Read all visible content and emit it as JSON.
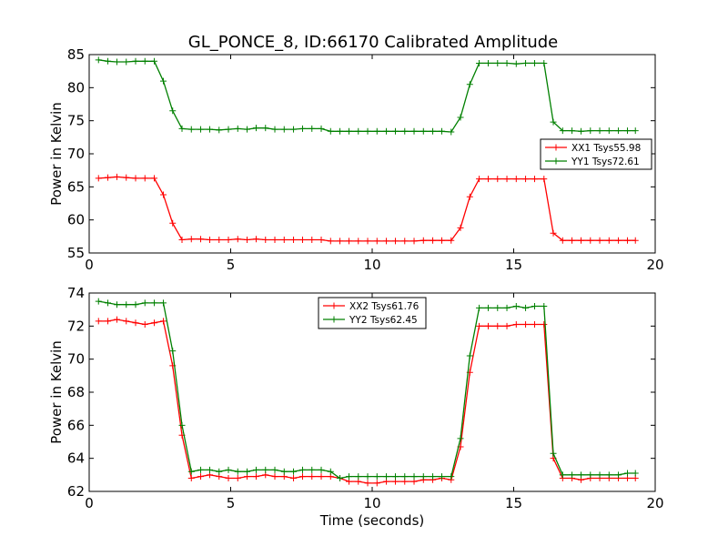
{
  "figure": {
    "title": "GL_PONCE_8, ID:66170 Calibrated Amplitude"
  },
  "chart_data": [
    {
      "type": "line",
      "title": "GL_PONCE_8, ID:66170 Calibrated Amplitude",
      "xlabel": "",
      "ylabel": "Power in Kelvin",
      "xlim": [
        0,
        20
      ],
      "ylim": [
        55,
        85
      ],
      "xticks": [
        0,
        5,
        10,
        15,
        20
      ],
      "yticks": [
        55,
        60,
        65,
        70,
        75,
        80,
        85
      ],
      "legend_position": "right",
      "grid": false,
      "x": [
        0.33,
        0.66,
        0.98,
        1.31,
        1.64,
        1.97,
        2.3,
        2.62,
        2.95,
        3.28,
        3.61,
        3.94,
        4.26,
        4.59,
        4.92,
        5.25,
        5.58,
        5.9,
        6.23,
        6.56,
        6.89,
        7.22,
        7.54,
        7.87,
        8.2,
        8.53,
        8.86,
        9.18,
        9.51,
        9.84,
        10.17,
        10.5,
        10.82,
        11.15,
        11.48,
        11.81,
        12.14,
        12.46,
        12.79,
        13.12,
        13.45,
        13.78,
        14.1,
        14.43,
        14.76,
        15.09,
        15.42,
        15.74,
        16.07,
        16.4,
        16.73,
        17.06,
        17.38,
        17.71,
        18.04,
        18.37,
        18.7,
        19.02,
        19.3
      ],
      "series": [
        {
          "name": "XX1 Tsys55.98",
          "color": "#ff0000",
          "values": [
            66.3,
            66.4,
            66.5,
            66.4,
            66.3,
            66.3,
            66.3,
            63.8,
            59.5,
            57.0,
            57.1,
            57.1,
            57.0,
            57.0,
            57.0,
            57.1,
            57.0,
            57.1,
            57.0,
            57.0,
            57.0,
            57.0,
            57.0,
            57.0,
            57.0,
            56.8,
            56.8,
            56.8,
            56.8,
            56.8,
            56.8,
            56.8,
            56.8,
            56.8,
            56.8,
            56.9,
            56.9,
            56.9,
            56.9,
            58.8,
            63.5,
            66.2,
            66.2,
            66.2,
            66.2,
            66.2,
            66.2,
            66.2,
            66.2,
            58.0,
            56.9,
            56.9,
            56.9,
            56.9,
            56.9,
            56.9,
            56.9,
            56.9,
            56.9
          ]
        },
        {
          "name": "YY1 Tsys72.61",
          "color": "#008000",
          "values": [
            84.2,
            84.0,
            83.9,
            83.9,
            84.0,
            84.0,
            84.0,
            81.0,
            76.5,
            73.8,
            73.7,
            73.7,
            73.7,
            73.6,
            73.7,
            73.8,
            73.7,
            73.9,
            73.9,
            73.7,
            73.7,
            73.7,
            73.8,
            73.8,
            73.8,
            73.4,
            73.4,
            73.4,
            73.4,
            73.4,
            73.4,
            73.4,
            73.4,
            73.4,
            73.4,
            73.4,
            73.4,
            73.4,
            73.3,
            75.5,
            80.5,
            83.7,
            83.7,
            83.7,
            83.7,
            83.6,
            83.7,
            83.7,
            83.7,
            74.8,
            73.5,
            73.5,
            73.4,
            73.5,
            73.5,
            73.5,
            73.5,
            73.5,
            73.5
          ]
        }
      ]
    },
    {
      "type": "line",
      "title": "",
      "xlabel": "Time (seconds)",
      "ylabel": "Power in Kelvin",
      "xlim": [
        0,
        20
      ],
      "ylim": [
        62,
        74
      ],
      "xticks": [
        0,
        5,
        10,
        15,
        20
      ],
      "yticks": [
        62,
        64,
        66,
        68,
        70,
        72,
        74
      ],
      "legend_position": "top-center",
      "grid": false,
      "x": [
        0.33,
        0.66,
        0.98,
        1.31,
        1.64,
        1.97,
        2.3,
        2.62,
        2.95,
        3.28,
        3.61,
        3.94,
        4.26,
        4.59,
        4.92,
        5.25,
        5.58,
        5.9,
        6.23,
        6.56,
        6.89,
        7.22,
        7.54,
        7.87,
        8.2,
        8.53,
        8.86,
        9.18,
        9.51,
        9.84,
        10.17,
        10.5,
        10.82,
        11.15,
        11.48,
        11.81,
        12.14,
        12.46,
        12.79,
        13.12,
        13.45,
        13.78,
        14.1,
        14.43,
        14.76,
        15.09,
        15.42,
        15.74,
        16.07,
        16.4,
        16.73,
        17.06,
        17.38,
        17.71,
        18.04,
        18.37,
        18.7,
        19.02,
        19.3
      ],
      "series": [
        {
          "name": "XX2 Tsys61.76",
          "color": "#ff0000",
          "values": [
            72.3,
            72.3,
            72.4,
            72.3,
            72.2,
            72.1,
            72.2,
            72.3,
            69.6,
            65.4,
            62.8,
            62.9,
            63.0,
            62.9,
            62.8,
            62.8,
            62.9,
            62.9,
            63.0,
            62.9,
            62.9,
            62.8,
            62.9,
            62.9,
            62.9,
            62.9,
            62.8,
            62.6,
            62.6,
            62.5,
            62.5,
            62.6,
            62.6,
            62.6,
            62.6,
            62.7,
            62.7,
            62.8,
            62.7,
            64.7,
            69.2,
            72.0,
            72.0,
            72.0,
            72.0,
            72.1,
            72.1,
            72.1,
            72.1,
            64.0,
            62.8,
            62.8,
            62.7,
            62.8,
            62.8,
            62.8,
            62.8,
            62.8,
            62.8
          ]
        },
        {
          "name": "YY2 Tsys62.45",
          "color": "#008000",
          "values": [
            73.5,
            73.4,
            73.3,
            73.3,
            73.3,
            73.4,
            73.4,
            73.4,
            70.5,
            66.0,
            63.2,
            63.3,
            63.3,
            63.2,
            63.3,
            63.2,
            63.2,
            63.3,
            63.3,
            63.3,
            63.2,
            63.2,
            63.3,
            63.3,
            63.3,
            63.2,
            62.8,
            62.9,
            62.9,
            62.9,
            62.9,
            62.9,
            62.9,
            62.9,
            62.9,
            62.9,
            62.9,
            62.9,
            62.9,
            65.2,
            70.2,
            73.1,
            73.1,
            73.1,
            73.1,
            73.2,
            73.1,
            73.2,
            73.2,
            64.3,
            63.0,
            63.0,
            63.0,
            63.0,
            63.0,
            63.0,
            63.0,
            63.1,
            63.1
          ]
        }
      ]
    }
  ]
}
